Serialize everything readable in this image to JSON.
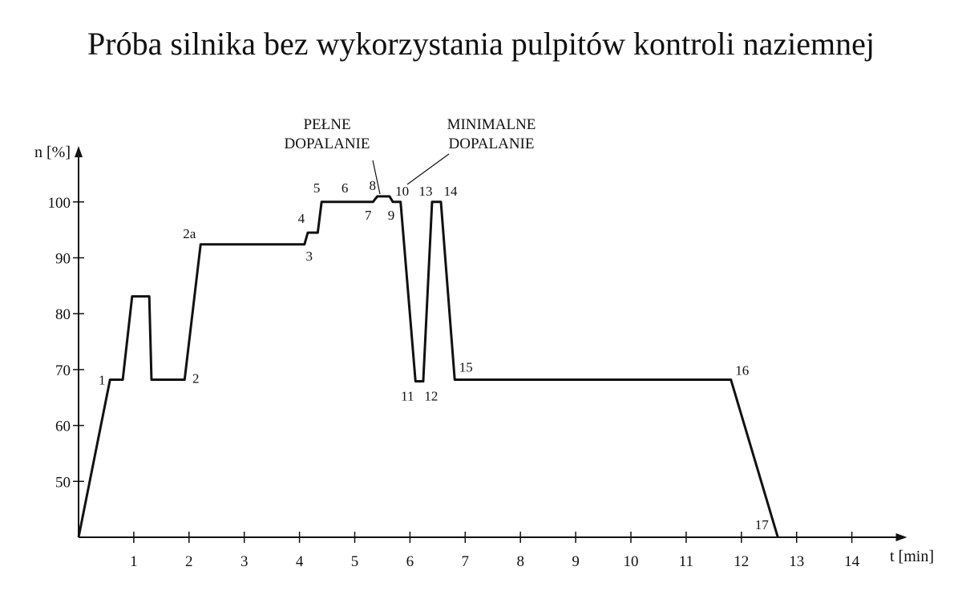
{
  "chart_data": {
    "type": "line",
    "title": "Próba silnika bez  wykorzystania pulpitów kontroli naziemnej",
    "x_label": "t [min]",
    "y_label": "n [%]",
    "x": [
      0,
      0.57,
      0.8,
      0.97,
      1.28,
      1.32,
      1.92,
      2.21,
      4.09,
      4.15,
      4.33,
      4.4,
      4.82,
      5.33,
      5.41,
      5.63,
      5.69,
      5.83,
      6.1,
      6.24,
      6.4,
      6.56,
      6.81,
      11.81,
      12.66
    ],
    "series": [
      {
        "color": "#111111",
        "values": [
          40,
          68.2,
          68.2,
          83.1,
          83.1,
          68.2,
          68.2,
          92.4,
          92.4,
          94.5,
          94.5,
          100,
          100,
          100,
          101,
          101,
          100,
          100,
          67.9,
          67.9,
          100,
          100,
          68.2,
          68.2,
          40
        ],
        "point_labels": [
          null,
          "1",
          null,
          null,
          null,
          null,
          "2",
          "2a",
          "3",
          "4",
          null,
          "5",
          "6",
          "7",
          "8",
          null,
          "9",
          "10",
          "11",
          "12",
          "13",
          "14",
          "15",
          "16",
          "17"
        ]
      }
    ],
    "annotations": [
      [
        "PEŁNE",
        "DOPALANIE"
      ],
      [
        "MINIMALNE",
        "DOPALANIE"
      ]
    ],
    "xlim": [
      0,
      15
    ],
    "ylim": [
      40,
      110
    ],
    "xticks": [
      1,
      2,
      3,
      4,
      5,
      6,
      7,
      8,
      9,
      10,
      11,
      12,
      13,
      14
    ],
    "yticks": [
      50,
      60,
      70,
      80,
      90,
      100
    ]
  }
}
